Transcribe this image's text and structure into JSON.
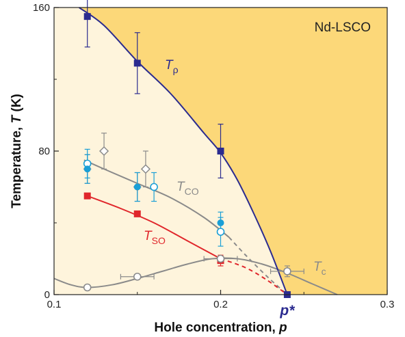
{
  "chart_data": {
    "type": "scatter",
    "title": "",
    "annotation": "Nd-LSCO",
    "xlabel_main": "Hole concentration, ",
    "xlabel_var": "p",
    "ylabel_main": "Temperature, ",
    "ylabel_var": "T",
    "ylabel_unit": " (K)",
    "xlim": [
      0.1,
      0.3
    ],
    "ylim": [
      0,
      160
    ],
    "xticks": [
      0.1,
      0.2,
      0.3
    ],
    "xtick_labels": [
      "0.1",
      "0.2",
      "0.3"
    ],
    "yticks": [
      0,
      80,
      160
    ],
    "ytick_labels": [
      "0",
      "80",
      "160"
    ],
    "pstar_label": "p*",
    "pstar_value": 0.24,
    "colors": {
      "pseudogap_fill": "#fcd879",
      "region_fill": "#fef4dc",
      "t_rho": "#2b2b8f",
      "t_co": "#8a8a8a",
      "t_so": "#e0262b",
      "t_co_blue": "#1a9fd6",
      "t_c": "#8a8a8a"
    },
    "series": [
      {
        "name": "T",
        "subscript": "ρ",
        "marker": "filled-square",
        "x": [
          0.12,
          0.15,
          0.2,
          0.24
        ],
        "y": [
          155,
          129,
          80,
          0
        ],
        "yerr": [
          17,
          17,
          15,
          0
        ]
      },
      {
        "name": "T",
        "subscript": "CO",
        "marker": "open-diamond",
        "x": [
          0.125,
          0.15
        ],
        "y": [
          80,
          70
        ],
        "yerr": [
          10,
          10
        ]
      },
      {
        "name": "T",
        "subscript": "CO",
        "marker": "filled-diamond",
        "x": [
          0.12,
          0.15
        ],
        "y": [
          70,
          60
        ],
        "yerr": [
          8,
          8
        ]
      },
      {
        "marker": "open-circle-blue",
        "x": [
          0.12,
          0.16,
          0.2
        ],
        "y": [
          73,
          60,
          35
        ],
        "yerr": [
          8,
          8,
          8
        ]
      },
      {
        "marker": "filled-circle-blue",
        "x": [
          0.12,
          0.15,
          0.2
        ],
        "y": [
          70,
          60,
          40
        ],
        "yerr": [
          8,
          8,
          6
        ]
      },
      {
        "name": "T",
        "subscript": "SO",
        "marker": "filled-square-red",
        "x": [
          0.12,
          0.15,
          0.2
        ],
        "y": [
          55,
          45,
          19
        ],
        "yerr": [
          0,
          0,
          3
        ]
      },
      {
        "name": "T",
        "subscript": "c",
        "marker": "open-circle-gray",
        "x": [
          0.12,
          0.15,
          0.2,
          0.24
        ],
        "y": [
          4,
          10,
          20,
          13
        ],
        "xerr": [
          0,
          0.01,
          0.01,
          0.01
        ],
        "yerr": [
          0,
          0,
          0,
          3
        ]
      }
    ],
    "curves": {
      "t_rho": [
        [
          0.115,
          160
        ],
        [
          0.13,
          150
        ],
        [
          0.15,
          130
        ],
        [
          0.17,
          112
        ],
        [
          0.19,
          90
        ],
        [
          0.2,
          79
        ],
        [
          0.21,
          64
        ],
        [
          0.22,
          45
        ],
        [
          0.23,
          24
        ],
        [
          0.24,
          0
        ]
      ],
      "t_co_solid": [
        [
          0.118,
          75
        ],
        [
          0.13,
          70
        ],
        [
          0.15,
          62
        ],
        [
          0.17,
          54
        ],
        [
          0.19,
          43
        ],
        [
          0.205,
          32
        ]
      ],
      "t_co_dashed": [
        [
          0.205,
          32
        ],
        [
          0.215,
          22
        ],
        [
          0.228,
          10
        ],
        [
          0.24,
          0
        ]
      ],
      "t_so_solid": [
        [
          0.12,
          55
        ],
        [
          0.14,
          48
        ],
        [
          0.16,
          40
        ],
        [
          0.18,
          30
        ],
        [
          0.2,
          20
        ]
      ],
      "t_so_dashed": [
        [
          0.2,
          20
        ],
        [
          0.215,
          15
        ],
        [
          0.228,
          8
        ],
        [
          0.24,
          0
        ]
      ],
      "t_c": [
        [
          0.1,
          9
        ],
        [
          0.11,
          5.5
        ],
        [
          0.12,
          4
        ],
        [
          0.135,
          5.5
        ],
        [
          0.15,
          9
        ],
        [
          0.165,
          13
        ],
        [
          0.18,
          17
        ],
        [
          0.195,
          20
        ],
        [
          0.21,
          20
        ],
        [
          0.225,
          17
        ],
        [
          0.24,
          12
        ],
        [
          0.255,
          6
        ],
        [
          0.27,
          0
        ]
      ]
    }
  }
}
